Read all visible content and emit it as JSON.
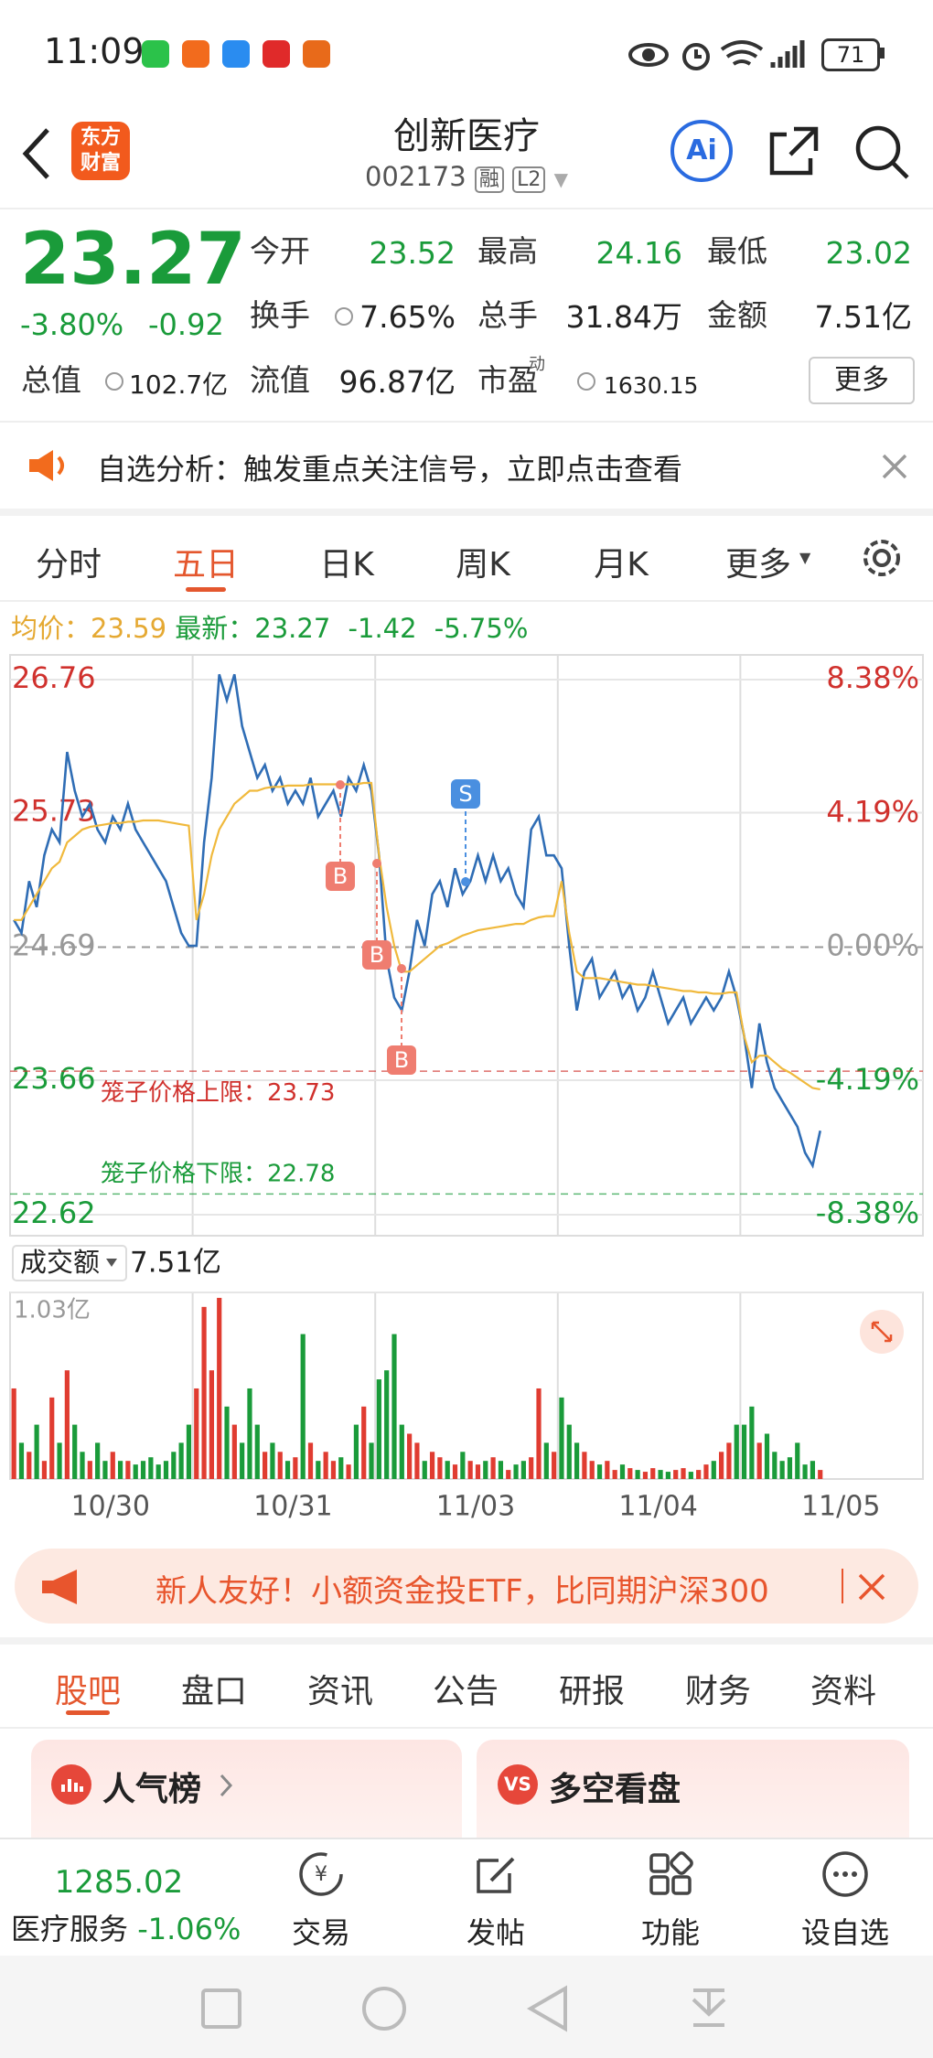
{
  "status_bar": {
    "time": "11:09",
    "battery": "71"
  },
  "header": {
    "logo": [
      "东方",
      "财富"
    ],
    "title": "创新医疗",
    "code": "002173",
    "badges": [
      "融",
      "L2"
    ],
    "ai": "Ai"
  },
  "quote": {
    "price": "23.27",
    "change_pct": "-3.80%",
    "change": "-0.92",
    "fields": [
      {
        "label": "今开",
        "value": "23.52"
      },
      {
        "label": "最高",
        "value": "24.16"
      },
      {
        "label": "最低",
        "value": "23.02"
      },
      {
        "label": "换手",
        "value": "7.65%"
      },
      {
        "label": "总手",
        "value": "31.84万"
      },
      {
        "label": "金额",
        "value": "7.51亿"
      },
      {
        "label": "总值",
        "value": "102.7亿"
      },
      {
        "label": "流值",
        "value": "96.87亿"
      },
      {
        "label": "市盈",
        "sup": "动",
        "value": "1630.15"
      }
    ],
    "more": "更多"
  },
  "notice": "自选分析：触发重点关注信号，立即点击查看",
  "tabs": {
    "items": [
      "分时",
      "五日",
      "日K",
      "周K",
      "月K",
      "更多"
    ],
    "active": 1
  },
  "summary": {
    "avg_label": "均价：",
    "avg": "23.59",
    "latest_label": "最新：",
    "latest": "23.27",
    "change": "-1.42",
    "change_pct": "-5.75%"
  },
  "chart_data": [
    {
      "type": "line",
      "categories": [
        "10/30",
        "10/31",
        "11/03",
        "11/04",
        "11/05"
      ],
      "series": [
        {
          "color": "#2f6db5",
          "values": [
            [
              24.9,
              24.8,
              25.2,
              25.0,
              25.4,
              25.6,
              25.5,
              26.2,
              25.9,
              25.7,
              25.8,
              25.6,
              25.5,
              25.7,
              25.6,
              25.8,
              25.6,
              25.5,
              25.4,
              25.3,
              25.2,
              25.0,
              24.8,
              24.7
            ],
            [
              24.7,
              25.5,
              26.0,
              26.8,
              26.6,
              26.8,
              26.4,
              26.2,
              26.0,
              26.1,
              25.9,
              26.0,
              25.8,
              25.9,
              25.8,
              26.0,
              25.7,
              25.8,
              25.9,
              25.7,
              26.0,
              25.9,
              26.1,
              25.9
            ],
            [
              25.4,
              24.6,
              24.3,
              24.2,
              24.5,
              24.9,
              24.7,
              25.1,
              25.2,
              25.0,
              25.3,
              25.1,
              25.2,
              25.4,
              25.2,
              25.4,
              25.2,
              25.3,
              25.1,
              25.0,
              25.6,
              25.7,
              25.4,
              25.4
            ],
            [
              25.3,
              24.7,
              24.2,
              24.5,
              24.6,
              24.3,
              24.4,
              24.5,
              24.3,
              24.4,
              24.2,
              24.3,
              24.5,
              24.3,
              24.1,
              24.2,
              24.3,
              24.1,
              24.2,
              24.3,
              24.2,
              24.3,
              24.5,
              24.3
            ],
            [
              24.0,
              23.6,
              24.1,
              23.8,
              23.6,
              23.5,
              23.4,
              23.3,
              23.1,
              23.0,
              23.27
            ]
          ]
        },
        {
          "color": "#f0b93c",
          "values": [
            [
              24.9,
              24.9,
              25.0,
              25.1,
              25.2,
              25.3,
              25.35,
              25.5,
              25.55,
              25.6,
              25.62,
              25.63,
              25.64,
              25.65,
              25.65,
              25.66,
              25.66,
              25.67,
              25.67,
              25.67,
              25.66,
              25.65,
              25.64,
              25.63
            ],
            [
              24.9,
              25.1,
              25.4,
              25.6,
              25.7,
              25.8,
              25.85,
              25.9,
              25.9,
              25.92,
              25.93,
              25.93,
              25.94,
              25.94,
              25.94,
              25.95,
              25.95,
              25.95,
              25.95,
              25.95,
              25.95,
              25.95,
              25.96,
              25.96
            ],
            [
              25.4,
              25.0,
              24.7,
              24.5,
              24.5,
              24.55,
              24.6,
              24.65,
              24.7,
              24.72,
              24.75,
              24.78,
              24.8,
              24.82,
              24.83,
              24.84,
              24.85,
              24.86,
              24.87,
              24.87,
              24.9,
              24.92,
              24.93,
              24.93
            ],
            [
              25.2,
              24.8,
              24.5,
              24.45,
              24.45,
              24.45,
              24.44,
              24.43,
              24.42,
              24.41,
              24.4,
              24.4,
              24.39,
              24.38,
              24.37,
              24.36,
              24.35,
              24.35,
              24.34,
              24.34,
              24.33,
              24.33,
              24.34,
              24.34
            ],
            [
              24.0,
              23.8,
              23.85,
              23.85,
              23.8,
              23.75,
              23.72,
              23.68,
              23.64,
              23.6,
              23.59
            ]
          ]
        }
      ],
      "ylim": [
        22.62,
        26.76
      ],
      "yticks": [
        26.76,
        25.73,
        24.69,
        23.66,
        22.62
      ],
      "y2lim": [
        -8.38,
        8.38
      ],
      "y2ticks": [
        {
          "value": 8.38,
          "label": "8.38%"
        },
        {
          "value": 4.19,
          "label": "4.19%"
        },
        {
          "value": 0,
          "label": "0.00%"
        },
        {
          "value": -4.19,
          "label": "-4.19%"
        },
        {
          "value": -8.38,
          "label": "-8.38%"
        }
      ],
      "limits": [
        {
          "label": "笼子价格上限：",
          "value": 23.73,
          "color": "#d0312d"
        },
        {
          "label": "笼子价格下限：",
          "value": 22.78,
          "color": "#1a9b3a"
        }
      ],
      "signals": [
        "B",
        "B",
        "B",
        "S"
      ]
    },
    {
      "type": "bar",
      "title": "成交额",
      "total": "7.51亿",
      "ylim": [
        0,
        1.03
      ],
      "yticks": [
        {
          "value": 1.03,
          "label": "1.03亿"
        }
      ],
      "up_color": "#e03c31",
      "down_color": "#1a9b3a",
      "values": [
        [
          0.5,
          0.2,
          0.15,
          0.3,
          0.1,
          0.45,
          0.2,
          0.6,
          0.3,
          0.15,
          0.1,
          0.2,
          0.1,
          0.15,
          0.1,
          0.1,
          0.08,
          0.1,
          0.12,
          0.08,
          0.1,
          0.15,
          0.2,
          0.3
        ],
        [
          0.5,
          0.95,
          0.6,
          1.0,
          0.4,
          0.3,
          0.2,
          0.5,
          0.3,
          0.15,
          0.2,
          0.15,
          0.1,
          0.12,
          0.8,
          0.2,
          0.1,
          0.15,
          0.1,
          0.12,
          0.08,
          0.3,
          0.4,
          0.2
        ],
        [
          0.55,
          0.6,
          0.8,
          0.3,
          0.25,
          0.2,
          0.1,
          0.15,
          0.12,
          0.1,
          0.08,
          0.15,
          0.1,
          0.08,
          0.1,
          0.12,
          0.1,
          0.05,
          0.08,
          0.1,
          0.12,
          0.5,
          0.2,
          0.15
        ],
        [
          0.45,
          0.3,
          0.2,
          0.15,
          0.1,
          0.08,
          0.1,
          0.05,
          0.08,
          0.06,
          0.05,
          0.04,
          0.06,
          0.05,
          0.04,
          0.05,
          0.06,
          0.04,
          0.05,
          0.08,
          0.1,
          0.15,
          0.2,
          0.3
        ],
        [
          0.3,
          0.4,
          0.2,
          0.25,
          0.15,
          0.1,
          0.12,
          0.2,
          0.08,
          0.1,
          0.05
        ]
      ]
    }
  ],
  "banner": "新人友好！小额资金投ETF，比同期沪深300",
  "section_tabs": {
    "items": [
      "股吧",
      "盘口",
      "资讯",
      "公告",
      "研报",
      "财务",
      "资料"
    ],
    "active": 0
  },
  "cards": [
    "人气榜",
    "多空看盘"
  ],
  "bottom_bar": {
    "index_value": "1285.02",
    "index_name": "医疗服务",
    "index_change": "-1.06%",
    "buttons": [
      "交易",
      "发帖",
      "功能",
      "设自选"
    ]
  }
}
